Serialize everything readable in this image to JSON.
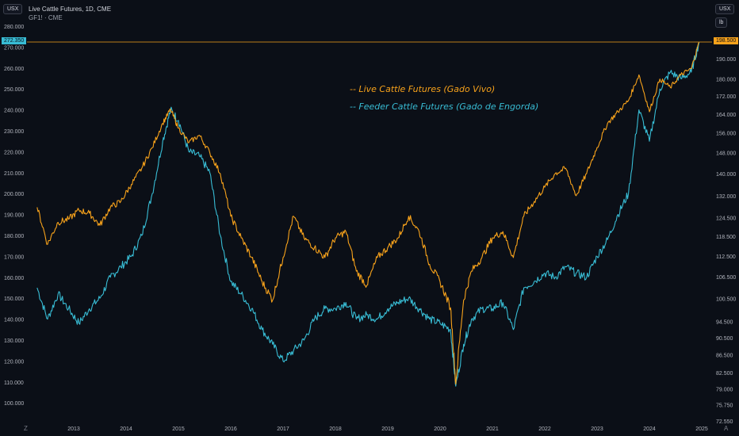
{
  "header": {
    "title": "Live Cattle Futures, 1D, CME",
    "subtitle": "GF1! · CME",
    "left_unit": "USX",
    "right_unit": "USX",
    "right_unit2": "lb"
  },
  "legend": {
    "live": "-- Live Cattle Futures (Gado Vivo)",
    "feeder": "-- Feeder Cattle Futures (Gado de Engorda)"
  },
  "current": {
    "left_label": "272.350",
    "right_label": "198.500"
  },
  "corner": {
    "left": "Z",
    "right": "A"
  },
  "colors": {
    "live": "#f7a21b",
    "feeder": "#38bcd4",
    "bg": "#0b0f17"
  },
  "chart_data": {
    "type": "line",
    "x_ticks": [
      "2013",
      "2014",
      "2015",
      "2016",
      "2017",
      "2018",
      "2019",
      "2020",
      "2021",
      "2022",
      "2023",
      "2024",
      "2025"
    ],
    "left_axis": {
      "ticks": [
        "280.000",
        "270.000",
        "260.000",
        "250.000",
        "240.000",
        "230.000",
        "220.000",
        "210.000",
        "200.000",
        "190.000",
        "180.000",
        "170.000",
        "160.000",
        "150.000",
        "140.000",
        "130.000",
        "120.000",
        "110.000",
        "100.000"
      ],
      "ylim": [
        96,
        285
      ]
    },
    "right_axis": {
      "scale": "log",
      "ticks": [
        "190.000",
        "180.000",
        "172.000",
        "164.000",
        "156.000",
        "148.000",
        "140.000",
        "132.000",
        "124.500",
        "118.500",
        "112.500",
        "106.500",
        "100.500",
        "94.500",
        "90.500",
        "86.500",
        "82.500",
        "79.000",
        "75.750",
        "72.550"
      ],
      "ylim": [
        72.55,
        198.5
      ]
    },
    "series": [
      {
        "name": "Feeder Cattle Futures (Gado de Engorda)",
        "axis": "left",
        "x": [
          2012.3,
          2012.5,
          2012.7,
          2012.9,
          2013.1,
          2013.3,
          2013.5,
          2013.7,
          2013.9,
          2014.1,
          2014.3,
          2014.5,
          2014.7,
          2014.85,
          2015.0,
          2015.2,
          2015.4,
          2015.6,
          2015.8,
          2016.0,
          2016.2,
          2016.4,
          2016.6,
          2016.8,
          2017.0,
          2017.2,
          2017.4,
          2017.6,
          2017.8,
          2018.0,
          2018.2,
          2018.4,
          2018.6,
          2018.8,
          2019.0,
          2019.2,
          2019.4,
          2019.6,
          2019.8,
          2020.0,
          2020.2,
          2020.3,
          2020.45,
          2020.6,
          2020.8,
          2021.0,
          2021.2,
          2021.4,
          2021.6,
          2021.8,
          2022.0,
          2022.2,
          2022.4,
          2022.6,
          2022.8,
          2023.0,
          2023.2,
          2023.4,
          2023.6,
          2023.8,
          2024.0,
          2024.2,
          2024.4,
          2024.6,
          2024.8,
          2024.95
        ],
        "y": [
          155,
          140,
          152,
          145,
          138,
          145,
          150,
          160,
          165,
          170,
          180,
          200,
          225,
          240,
          235,
          220,
          218,
          210,
          180,
          158,
          152,
          145,
          135,
          128,
          120,
          125,
          130,
          140,
          145,
          145,
          148,
          140,
          142,
          140,
          145,
          148,
          150,
          145,
          140,
          138,
          135,
          108,
          128,
          140,
          145,
          145,
          148,
          135,
          155,
          158,
          162,
          160,
          165,
          162,
          160,
          170,
          178,
          190,
          200,
          240,
          225,
          250,
          258,
          255,
          258,
          272.35
        ]
      },
      {
        "name": "Live Cattle Futures (Gado Vivo)",
        "axis": "right",
        "x": [
          2012.3,
          2012.5,
          2012.7,
          2012.9,
          2013.1,
          2013.3,
          2013.5,
          2013.7,
          2013.9,
          2014.1,
          2014.3,
          2014.5,
          2014.7,
          2014.85,
          2015.0,
          2015.2,
          2015.4,
          2015.6,
          2015.8,
          2016.0,
          2016.2,
          2016.4,
          2016.6,
          2016.8,
          2017.0,
          2017.2,
          2017.4,
          2017.6,
          2017.8,
          2018.0,
          2018.2,
          2018.4,
          2018.6,
          2018.8,
          2019.0,
          2019.2,
          2019.4,
          2019.6,
          2019.8,
          2020.0,
          2020.2,
          2020.3,
          2020.45,
          2020.6,
          2020.8,
          2021.0,
          2021.2,
          2021.4,
          2021.6,
          2021.8,
          2022.0,
          2022.2,
          2022.4,
          2022.6,
          2022.8,
          2023.0,
          2023.2,
          2023.4,
          2023.6,
          2023.8,
          2024.0,
          2024.2,
          2024.4,
          2024.6,
          2024.8,
          2024.95
        ],
        "y": [
          128,
          116,
          123,
          124,
          127,
          126,
          122,
          128,
          130,
          136,
          142,
          150,
          160,
          166,
          158,
          152,
          155,
          148,
          140,
          125,
          118,
          112,
          105,
          100,
          112,
          125,
          118,
          115,
          112,
          118,
          120,
          108,
          104,
          112,
          115,
          118,
          125,
          120,
          110,
          105,
          98,
          80,
          100,
          108,
          112,
          118,
          120,
          112,
          125,
          130,
          135,
          140,
          142,
          132,
          140,
          150,
          160,
          165,
          170,
          182,
          165,
          180,
          176,
          182,
          185,
          198.5
        ]
      }
    ]
  }
}
